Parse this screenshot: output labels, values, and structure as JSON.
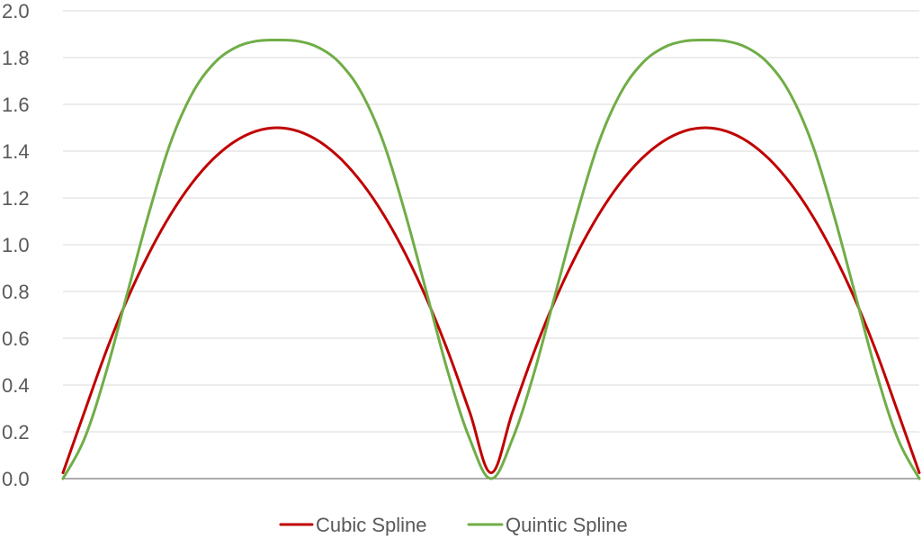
{
  "chart_data": {
    "type": "line",
    "title": "",
    "xlabel": "",
    "ylabel": "",
    "xlim": [
      0,
      2
    ],
    "ylim": [
      0,
      2
    ],
    "yticks": [
      "0.0",
      "0.2",
      "0.4",
      "0.6",
      "0.8",
      "1.0",
      "1.2",
      "1.4",
      "1.6",
      "1.8",
      "2.0"
    ],
    "grid": true,
    "legend_position": "bottom-center",
    "series": [
      {
        "name": "Cubic Spline",
        "color": "#c00000",
        "x": [
          0.0,
          0.05,
          0.1,
          0.15,
          0.2,
          0.25,
          0.3,
          0.35,
          0.4,
          0.45,
          0.5,
          0.55,
          0.6,
          0.65,
          0.7,
          0.75,
          0.8,
          0.85,
          0.9,
          0.95,
          1.0,
          1.05,
          1.1,
          1.15,
          1.2,
          1.25,
          1.3,
          1.35,
          1.4,
          1.45,
          1.5,
          1.55,
          1.6,
          1.65,
          1.7,
          1.75,
          1.8,
          1.85,
          1.9,
          1.95,
          2.0
        ],
        "values": [
          0.025,
          0.284,
          0.54,
          0.766,
          0.96,
          1.125,
          1.26,
          1.365,
          1.44,
          1.485,
          1.5,
          1.485,
          1.44,
          1.365,
          1.26,
          1.125,
          0.96,
          0.766,
          0.54,
          0.284,
          0.025,
          0.284,
          0.54,
          0.766,
          0.96,
          1.125,
          1.26,
          1.365,
          1.44,
          1.485,
          1.5,
          1.485,
          1.44,
          1.365,
          1.26,
          1.125,
          0.96,
          0.766,
          0.54,
          0.284,
          0.025
        ]
      },
      {
        "name": "Quintic Spline",
        "color": "#70ad47",
        "x": [
          0.0,
          0.05,
          0.1,
          0.15,
          0.2,
          0.25,
          0.3,
          0.35,
          0.4,
          0.45,
          0.5,
          0.55,
          0.6,
          0.65,
          0.7,
          0.75,
          0.8,
          0.85,
          0.9,
          0.95,
          1.0,
          1.05,
          1.1,
          1.15,
          1.2,
          1.25,
          1.3,
          1.35,
          1.4,
          1.45,
          1.5,
          1.55,
          1.6,
          1.65,
          1.7,
          1.75,
          1.8,
          1.85,
          1.9,
          1.95,
          2.0
        ],
        "values": [
          0.0,
          0.17,
          0.45,
          0.79,
          1.13,
          1.43,
          1.64,
          1.77,
          1.84,
          1.87,
          1.875,
          1.87,
          1.84,
          1.77,
          1.64,
          1.43,
          1.13,
          0.79,
          0.45,
          0.17,
          0.0,
          0.17,
          0.45,
          0.79,
          1.13,
          1.43,
          1.64,
          1.77,
          1.84,
          1.87,
          1.875,
          1.87,
          1.84,
          1.77,
          1.64,
          1.43,
          1.13,
          0.79,
          0.45,
          0.17,
          0.0
        ]
      }
    ]
  }
}
